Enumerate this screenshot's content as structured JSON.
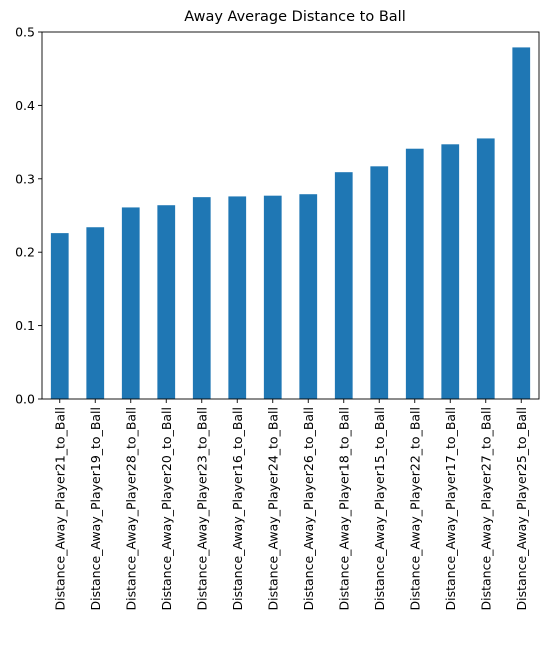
{
  "colors": {
    "bar": "#1f77b4",
    "axis": "#000000",
    "background": "#ffffff"
  },
  "chart_data": {
    "type": "bar",
    "title": "Away Average Distance to Ball",
    "xlabel": "",
    "ylabel": "",
    "grid": false,
    "legend": false,
    "ylim": [
      0,
      0.5
    ],
    "yticks": [
      0.0,
      0.1,
      0.2,
      0.3,
      0.4,
      0.5
    ],
    "ytick_labels": [
      "0.0",
      "0.1",
      "0.2",
      "0.3",
      "0.4",
      "0.5"
    ],
    "categories": [
      "Distance_Away_Player21_to_Ball",
      "Distance_Away_Player19_to_Ball",
      "Distance_Away_Player28_to_Ball",
      "Distance_Away_Player20_to_Ball",
      "Distance_Away_Player23_to_Ball",
      "Distance_Away_Player16_to_Ball",
      "Distance_Away_Player24_to_Ball",
      "Distance_Away_Player26_to_Ball",
      "Distance_Away_Player18_to_Ball",
      "Distance_Away_Player15_to_Ball",
      "Distance_Away_Player22_to_Ball",
      "Distance_Away_Player17_to_Ball",
      "Distance_Away_Player27_to_Ball",
      "Distance_Away_Player25_to_Ball"
    ],
    "values": [
      0.226,
      0.234,
      0.261,
      0.264,
      0.275,
      0.276,
      0.277,
      0.279,
      0.309,
      0.317,
      0.341,
      0.347,
      0.355,
      0.479
    ]
  }
}
